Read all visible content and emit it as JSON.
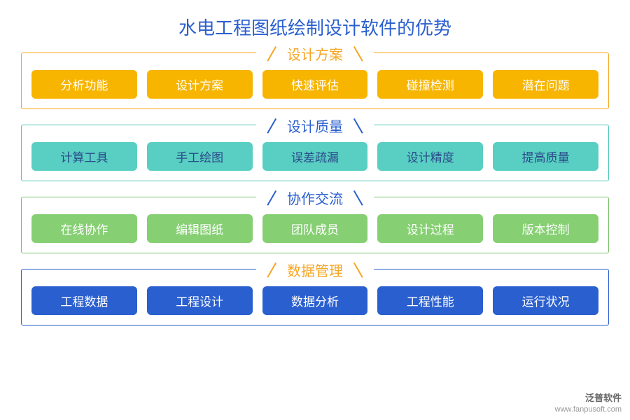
{
  "title": {
    "text": "水电工程图纸绘制设计软件的优势",
    "color": "#2a5fcf"
  },
  "sections": [
    {
      "label": "设计方案",
      "label_color": "#f5a623",
      "border_color": "#f5a623",
      "tag_bg": "#f7b500",
      "tag_text_color": "#ffffff",
      "tags": [
        "分析功能",
        "设计方案",
        "快速评估",
        "碰撞检测",
        "潜在问题"
      ]
    },
    {
      "label": "设计质量",
      "label_color": "#2a5fcf",
      "border_color": "#4fc6b8",
      "tag_bg": "#58cfc2",
      "tag_text_color": "#2b4a8a",
      "tags": [
        "计算工具",
        "手工绘图",
        "误差疏漏",
        "设计精度",
        "提高质量"
      ]
    },
    {
      "label": "协作交流",
      "label_color": "#2a5fcf",
      "border_color": "#7bbf6a",
      "tag_bg": "#86cf73",
      "tag_text_color": "#ffffff",
      "tags": [
        "在线协作",
        "编辑图纸",
        "团队成员",
        "设计过程",
        "版本控制"
      ]
    },
    {
      "label": "数据管理",
      "label_color": "#f5a623",
      "border_color": "#2a5fcf",
      "tag_bg": "#2a5fcf",
      "tag_text_color": "#ffffff",
      "tags": [
        "工程数据",
        "工程设计",
        "数据分析",
        "工程性能",
        "运行状况"
      ]
    }
  ],
  "watermark": {
    "brand": "泛普软件",
    "url": "www.fanpusoft.com"
  }
}
